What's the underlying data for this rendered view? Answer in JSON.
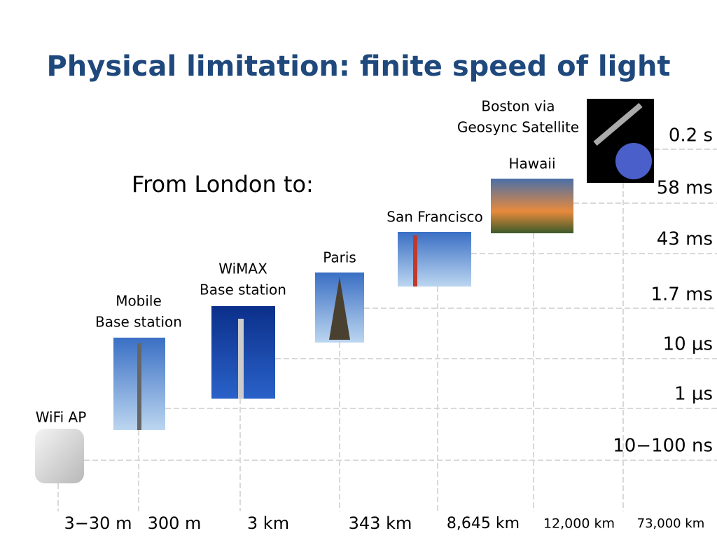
{
  "title": "Physical limitation: finite speed of light",
  "subtitle": "From London to:",
  "items": [
    {
      "label": [
        "WiFi AP"
      ],
      "distance": "3−30 m",
      "latency": "10−100 ns"
    },
    {
      "label": [
        "Mobile",
        "Base station"
      ],
      "distance": "300 m",
      "latency": "1 µs"
    },
    {
      "label": [
        "WiMAX",
        "Base station"
      ],
      "distance": "3 km",
      "latency": "10 µs"
    },
    {
      "label": [
        "Paris"
      ],
      "distance": "343 km",
      "latency": "1.7 ms"
    },
    {
      "label": [
        "San Francisco"
      ],
      "distance": "8,645 km",
      "latency": "43 ms"
    },
    {
      "label": [
        "Hawaii"
      ],
      "distance": "12,000 km",
      "latency": "58 ms"
    },
    {
      "label": [
        "Boston via",
        "Geosync Satellite"
      ],
      "distance": "73,000 km",
      "latency": "0.2 s"
    }
  ]
}
